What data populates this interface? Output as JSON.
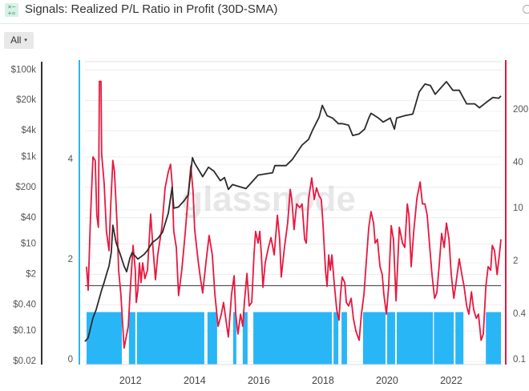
{
  "header": {
    "title": "Signals: Realized P/L Ratio in Profit (30D-SMA)",
    "icon": "calculator-signals-icon",
    "corner_icon": "settings-icon"
  },
  "toolbar": {
    "range_label": "All",
    "range_caret": "▾"
  },
  "colors": {
    "price": "#2b2b2b",
    "ratio": "#e8173f",
    "signal": "#29b6f6",
    "threshold": "#555555",
    "grid": "#ececec"
  },
  "chart_data": {
    "type": "line",
    "title": "Signals: Realized P/L Ratio in Profit (30D-SMA)",
    "watermark": "glassnode",
    "grid": true,
    "x_ticks": [
      "2012",
      "2014",
      "2016",
      "2018",
      "2020",
      "2022"
    ],
    "x_tick_values": [
      2012,
      2014,
      2016,
      2018,
      2020,
      2022
    ],
    "xlim": [
      2010.58,
      2023.55
    ],
    "axes": {
      "price": {
        "scale": "log",
        "side": "left-outer",
        "ylim": [
          0.02,
          100000
        ],
        "tick_labels": [
          "$100k",
          "$20k",
          "$4k",
          "$1k",
          "$200",
          "$40",
          "$10",
          "$2",
          "$0.40",
          "$0.10",
          "$0.02"
        ],
        "tick_values": [
          100000,
          20000,
          4000,
          1000,
          200,
          40,
          10,
          2,
          0.4,
          0.1,
          0.02
        ]
      },
      "signal": {
        "scale": "linear",
        "side": "left-inner",
        "ylim": [
          0,
          5.6
        ],
        "tick_labels": [
          "4",
          "2",
          "0"
        ],
        "tick_values": [
          4,
          2,
          0
        ]
      },
      "ratio": {
        "scale": "log",
        "side": "right",
        "ylim": [
          0.1,
          550
        ],
        "tick_labels": [
          "200",
          "40",
          "10",
          "2",
          "0.4",
          "0.1"
        ],
        "tick_values": [
          200,
          40,
          10,
          2,
          0.4,
          0.1
        ]
      }
    },
    "threshold": {
      "axis": "ratio",
      "value": 1
    },
    "signal_bars": {
      "axis": "signal",
      "value": 1,
      "periods": [
        [
          2010.63,
          2011.73
        ],
        [
          2011.95,
          2012.15
        ],
        [
          2012.2,
          2014.3
        ],
        [
          2014.4,
          2014.7
        ],
        [
          2015.2,
          2015.3
        ],
        [
          2015.5,
          2015.65
        ],
        [
          2015.83,
          2018.28
        ],
        [
          2018.33,
          2018.48
        ],
        [
          2018.58,
          2018.75
        ],
        [
          2019.25,
          2019.95
        ],
        [
          2020.0,
          2020.25
        ],
        [
          2020.3,
          2021.43
        ],
        [
          2021.46,
          2022.08
        ],
        [
          2022.13,
          2022.38
        ],
        [
          2023.08,
          2023.55
        ]
      ]
    },
    "series": [
      {
        "axis": "price",
        "points": [
          [
            2010.58,
            0.057
          ],
          [
            2010.68,
            0.07
          ],
          [
            2010.83,
            0.2
          ],
          [
            2010.93,
            0.31
          ],
          [
            2011.03,
            0.57
          ],
          [
            2011.1,
            0.87
          ],
          [
            2011.18,
            1.32
          ],
          [
            2011.25,
            2.0
          ],
          [
            2011.33,
            3.1
          ],
          [
            2011.4,
            6.3
          ],
          [
            2011.45,
            27
          ],
          [
            2011.55,
            10.8
          ],
          [
            2011.68,
            5.8
          ],
          [
            2011.8,
            3.1
          ],
          [
            2011.88,
            2.3
          ],
          [
            2011.98,
            4.7
          ],
          [
            2012.05,
            6.3
          ],
          [
            2012.23,
            4.5
          ],
          [
            2012.43,
            5.8
          ],
          [
            2012.53,
            7.1
          ],
          [
            2012.68,
            10.8
          ],
          [
            2012.85,
            13.3
          ],
          [
            2013.0,
            18.6
          ],
          [
            2013.18,
            51
          ],
          [
            2013.3,
            203
          ],
          [
            2013.35,
            66
          ],
          [
            2013.5,
            71
          ],
          [
            2013.68,
            100
          ],
          [
            2013.8,
            134
          ],
          [
            2013.93,
            960
          ],
          [
            2014.0,
            716
          ],
          [
            2014.25,
            351
          ],
          [
            2014.43,
            580
          ],
          [
            2014.6,
            471
          ],
          [
            2014.8,
            284
          ],
          [
            2014.93,
            336
          ],
          [
            2015.05,
            179
          ],
          [
            2015.18,
            231
          ],
          [
            2015.6,
            187
          ],
          [
            2015.98,
            382
          ],
          [
            2016.43,
            433
          ],
          [
            2016.5,
            631
          ],
          [
            2016.85,
            631
          ],
          [
            2017.05,
            883
          ],
          [
            2017.35,
            1879
          ],
          [
            2017.55,
            2518
          ],
          [
            2017.68,
            4169
          ],
          [
            2017.88,
            8160
          ],
          [
            2017.98,
            15280
          ],
          [
            2018.05,
            11880
          ],
          [
            2018.13,
            8870
          ],
          [
            2018.3,
            7820
          ],
          [
            2018.48,
            5820
          ],
          [
            2018.6,
            5820
          ],
          [
            2018.8,
            5360
          ],
          [
            2018.93,
            3105
          ],
          [
            2019.13,
            3380
          ],
          [
            2019.3,
            4345
          ],
          [
            2019.43,
            7820
          ],
          [
            2019.5,
            10050
          ],
          [
            2019.73,
            7820
          ],
          [
            2019.88,
            6340
          ],
          [
            2020.1,
            7820
          ],
          [
            2020.23,
            4345
          ],
          [
            2020.3,
            7820
          ],
          [
            2020.55,
            8870
          ],
          [
            2020.8,
            9640
          ],
          [
            2021.0,
            31200
          ],
          [
            2021.18,
            47400
          ],
          [
            2021.35,
            43660
          ],
          [
            2021.5,
            27500
          ],
          [
            2021.63,
            35400
          ],
          [
            2021.85,
            53800
          ],
          [
            2022.05,
            34000
          ],
          [
            2022.25,
            34000
          ],
          [
            2022.48,
            16600
          ],
          [
            2022.73,
            16600
          ],
          [
            2022.88,
            13500
          ],
          [
            2023.13,
            18860
          ],
          [
            2023.3,
            23300
          ],
          [
            2023.48,
            22300
          ],
          [
            2023.55,
            25300
          ]
        ]
      },
      {
        "axis": "ratio",
        "points": [
          [
            2010.63,
            1.78
          ],
          [
            2010.68,
            0.87
          ],
          [
            2010.75,
            7.5
          ],
          [
            2010.83,
            50
          ],
          [
            2010.9,
            45
          ],
          [
            2010.95,
            8.5
          ],
          [
            2011.0,
            5.9
          ],
          [
            2011.03,
            499
          ],
          [
            2011.08,
            499
          ],
          [
            2011.1,
            55
          ],
          [
            2011.18,
            22
          ],
          [
            2011.25,
            5.2
          ],
          [
            2011.33,
            2.9
          ],
          [
            2011.38,
            10.7
          ],
          [
            2011.45,
            45
          ],
          [
            2011.5,
            32
          ],
          [
            2011.58,
            6.7
          ],
          [
            2011.63,
            1.6
          ],
          [
            2011.7,
            0.77
          ],
          [
            2011.8,
            0.15
          ],
          [
            2011.93,
            0.29
          ],
          [
            2012.0,
            0.98
          ],
          [
            2012.08,
            3.4
          ],
          [
            2012.15,
            1.6
          ],
          [
            2012.18,
            0.6
          ],
          [
            2012.23,
            0.87
          ],
          [
            2012.28,
            2.0
          ],
          [
            2012.33,
            1.1
          ],
          [
            2012.38,
            2.0
          ],
          [
            2012.45,
            1.24
          ],
          [
            2012.53,
            1.6
          ],
          [
            2012.63,
            8.8
          ],
          [
            2012.7,
            3.2
          ],
          [
            2012.78,
            1.2
          ],
          [
            2012.85,
            2.55
          ],
          [
            2012.98,
            5.9
          ],
          [
            2013.08,
            19.6
          ],
          [
            2013.18,
            32
          ],
          [
            2013.25,
            40
          ],
          [
            2013.3,
            22
          ],
          [
            2013.35,
            5.2
          ],
          [
            2013.43,
            3.2
          ],
          [
            2013.5,
            0.74
          ],
          [
            2013.6,
            1.6
          ],
          [
            2013.7,
            4.6
          ],
          [
            2013.8,
            15.4
          ],
          [
            2013.88,
            38
          ],
          [
            2013.95,
            17.4
          ],
          [
            2014.0,
            5.5
          ],
          [
            2014.1,
            2.26
          ],
          [
            2014.18,
            1.24
          ],
          [
            2014.25,
            0.8
          ],
          [
            2014.35,
            2.0
          ],
          [
            2014.45,
            4.6
          ],
          [
            2014.55,
            2.55
          ],
          [
            2014.63,
            0.77
          ],
          [
            2014.73,
            0.29
          ],
          [
            2014.83,
            0.42
          ],
          [
            2014.9,
            0.6
          ],
          [
            2014.95,
            0.42
          ],
          [
            2015.05,
            0.21
          ],
          [
            2015.15,
            0.77
          ],
          [
            2015.23,
            1.35
          ],
          [
            2015.28,
            0.42
          ],
          [
            2015.35,
            0.23
          ],
          [
            2015.43,
            0.42
          ],
          [
            2015.5,
            0.29
          ],
          [
            2015.55,
            0.6
          ],
          [
            2015.63,
            1.45
          ],
          [
            2015.7,
            0.54
          ],
          [
            2015.78,
            0.6
          ],
          [
            2015.85,
            2.55
          ],
          [
            2015.9,
            5.2
          ],
          [
            2015.98,
            3.65
          ],
          [
            2016.03,
            5.2
          ],
          [
            2016.08,
            2.55
          ],
          [
            2016.13,
            0.95
          ],
          [
            2016.2,
            2.0
          ],
          [
            2016.3,
            3.2
          ],
          [
            2016.38,
            4.3
          ],
          [
            2016.48,
            2.55
          ],
          [
            2016.58,
            8.5
          ],
          [
            2016.65,
            4.1
          ],
          [
            2016.7,
            1.3
          ],
          [
            2016.8,
            3.2
          ],
          [
            2016.9,
            6.7
          ],
          [
            2016.98,
            18.7
          ],
          [
            2017.03,
            13.7
          ],
          [
            2017.1,
            5.5
          ],
          [
            2017.18,
            12
          ],
          [
            2017.28,
            10.7
          ],
          [
            2017.35,
            12
          ],
          [
            2017.43,
            4.1
          ],
          [
            2017.48,
            3.65
          ],
          [
            2017.55,
            13.7
          ],
          [
            2017.65,
            26.5
          ],
          [
            2017.73,
            13.7
          ],
          [
            2017.8,
            19.6
          ],
          [
            2017.88,
            15.4
          ],
          [
            2017.95,
            13.7
          ],
          [
            2018.0,
            6.7
          ],
          [
            2018.08,
            1.6
          ],
          [
            2018.13,
            0.98
          ],
          [
            2018.18,
            2.55
          ],
          [
            2018.23,
            1.6
          ],
          [
            2018.28,
            2.55
          ],
          [
            2018.35,
            1.1
          ],
          [
            2018.43,
            0.48
          ],
          [
            2018.5,
            0.35
          ],
          [
            2018.55,
            0.77
          ],
          [
            2018.6,
            1.3
          ],
          [
            2018.68,
            1.1
          ],
          [
            2018.73,
            0.6
          ],
          [
            2018.8,
            0.54
          ],
          [
            2018.88,
            0.68
          ],
          [
            2018.95,
            0.37
          ],
          [
            2019.03,
            0.25
          ],
          [
            2019.13,
            0.19
          ],
          [
            2019.2,
            0.42
          ],
          [
            2019.28,
            0.77
          ],
          [
            2019.35,
            2.0
          ],
          [
            2019.43,
            5.9
          ],
          [
            2019.5,
            9.5
          ],
          [
            2019.58,
            6.7
          ],
          [
            2019.63,
            3.65
          ],
          [
            2019.7,
            4.1
          ],
          [
            2019.78,
            1.78
          ],
          [
            2019.85,
            1.4
          ],
          [
            2019.9,
            0.77
          ],
          [
            2019.98,
            0.42
          ],
          [
            2020.05,
            0.98
          ],
          [
            2020.13,
            6.2
          ],
          [
            2020.2,
            4.1
          ],
          [
            2020.28,
            0.63
          ],
          [
            2020.38,
            5.9
          ],
          [
            2020.48,
            3.65
          ],
          [
            2020.55,
            3.2
          ],
          [
            2020.63,
            12
          ],
          [
            2020.68,
            8.5
          ],
          [
            2020.75,
            1.78
          ],
          [
            2020.83,
            5.2
          ],
          [
            2020.93,
            14.4
          ],
          [
            2021.03,
            23.4
          ],
          [
            2021.1,
            12
          ],
          [
            2021.18,
            12
          ],
          [
            2021.25,
            8.5
          ],
          [
            2021.33,
            3.2
          ],
          [
            2021.4,
            1.4
          ],
          [
            2021.48,
            0.68
          ],
          [
            2021.55,
            0.8
          ],
          [
            2021.63,
            2.0
          ],
          [
            2021.7,
            4.9
          ],
          [
            2021.78,
            3.2
          ],
          [
            2021.85,
            6.7
          ],
          [
            2021.93,
            4.1
          ],
          [
            2022.0,
            1.4
          ],
          [
            2022.08,
            0.68
          ],
          [
            2022.15,
            1.1
          ],
          [
            2022.25,
            2.26
          ],
          [
            2022.33,
            1.4
          ],
          [
            2022.4,
            0.98
          ],
          [
            2022.48,
            0.54
          ],
          [
            2022.55,
            0.42
          ],
          [
            2022.63,
            0.83
          ],
          [
            2022.7,
            0.48
          ],
          [
            2022.78,
            0.37
          ],
          [
            2022.85,
            0.42
          ],
          [
            2022.93,
            0.19
          ],
          [
            2023.0,
            0.23
          ],
          [
            2023.08,
            0.98
          ],
          [
            2023.15,
            1.78
          ],
          [
            2023.23,
            1.6
          ],
          [
            2023.28,
            3.4
          ],
          [
            2023.35,
            2.9
          ],
          [
            2023.43,
            1.4
          ],
          [
            2023.5,
            2.55
          ],
          [
            2023.55,
            4.1
          ]
        ]
      }
    ]
  }
}
